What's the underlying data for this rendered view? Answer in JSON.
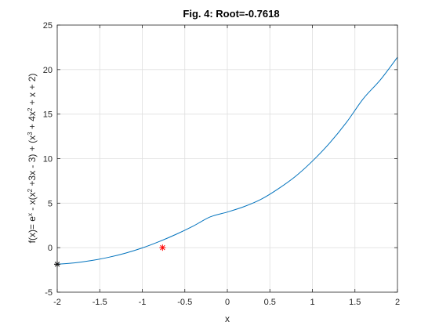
{
  "chart_data": {
    "type": "line",
    "title": "Fig. 4:  Root=-0.7618",
    "xlabel": "x",
    "ylabel": {
      "parts": [
        {
          "text": "f(x)= e"
        },
        {
          "text": "x",
          "sup": true
        },
        {
          "text": " - x(x"
        },
        {
          "text": "2",
          "sup": true
        },
        {
          "text": " +3x - 3) + (x"
        },
        {
          "text": "3",
          "sup": true
        },
        {
          "text": " + 4x"
        },
        {
          "text": "2",
          "sup": true
        },
        {
          "text": " + x + 2)"
        }
      ]
    },
    "xlim": [
      -2,
      2
    ],
    "ylim": [
      -5,
      25
    ],
    "xticks": [
      -2,
      -1.5,
      -1,
      -0.5,
      0,
      0.5,
      1,
      1.5,
      2
    ],
    "xtick_labels": [
      "-2",
      "-1.5",
      "-1",
      "-0.5",
      "0",
      "0.5",
      "1",
      "1.5",
      "2"
    ],
    "yticks": [
      -5,
      0,
      5,
      10,
      15,
      20,
      25
    ],
    "ytick_labels": [
      "-5",
      "0",
      "5",
      "10",
      "15",
      "20",
      "25"
    ],
    "grid": true,
    "series": [
      {
        "color": "#0072bd",
        "x": [
          -2,
          -1.8,
          -1.6,
          -1.4,
          -1.2,
          -1,
          -0.8,
          -0.6,
          -0.4,
          -0.2,
          0,
          0.2,
          0.4,
          0.6,
          0.8,
          1,
          1.2,
          1.4,
          1.6,
          1.8,
          2
        ],
        "y": [
          -1.86,
          -1.71,
          -1.45,
          -1.09,
          -0.62,
          -0.03,
          0.69,
          1.51,
          2.43,
          3.46,
          4.0,
          4.62,
          5.45,
          6.62,
          8.0,
          9.72,
          11.72,
          14.06,
          16.75,
          18.86,
          21.39
        ]
      }
    ],
    "markers": [
      {
        "x": -0.7618,
        "y": 0,
        "symbol": "*",
        "color": "#ff0000"
      },
      {
        "x": -2,
        "y": -1.86,
        "symbol": "*",
        "color": "#000000"
      }
    ]
  }
}
